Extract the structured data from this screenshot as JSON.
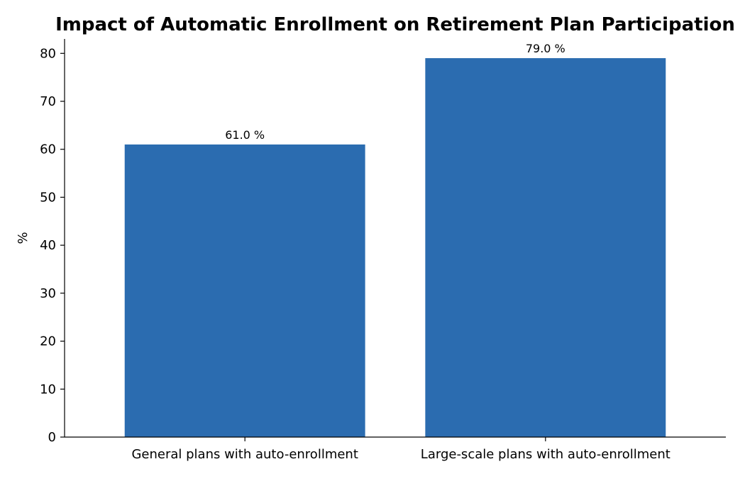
{
  "chart_data": {
    "type": "bar",
    "title": "Impact of Automatic Enrollment on Retirement Plan Participation",
    "xlabel": "",
    "ylabel": "%",
    "categories": [
      "General plans with auto-enrollment",
      "Large-scale plans with auto-enrollment"
    ],
    "values": [
      61.0,
      79.0
    ],
    "data_labels": [
      "61.0 %",
      "79.0 %"
    ],
    "ylim": [
      0,
      83
    ],
    "yticks": [
      0,
      10,
      20,
      30,
      40,
      50,
      60,
      70,
      80
    ],
    "grid": false,
    "legend": "none",
    "bar_color": "#2b6cb0"
  }
}
